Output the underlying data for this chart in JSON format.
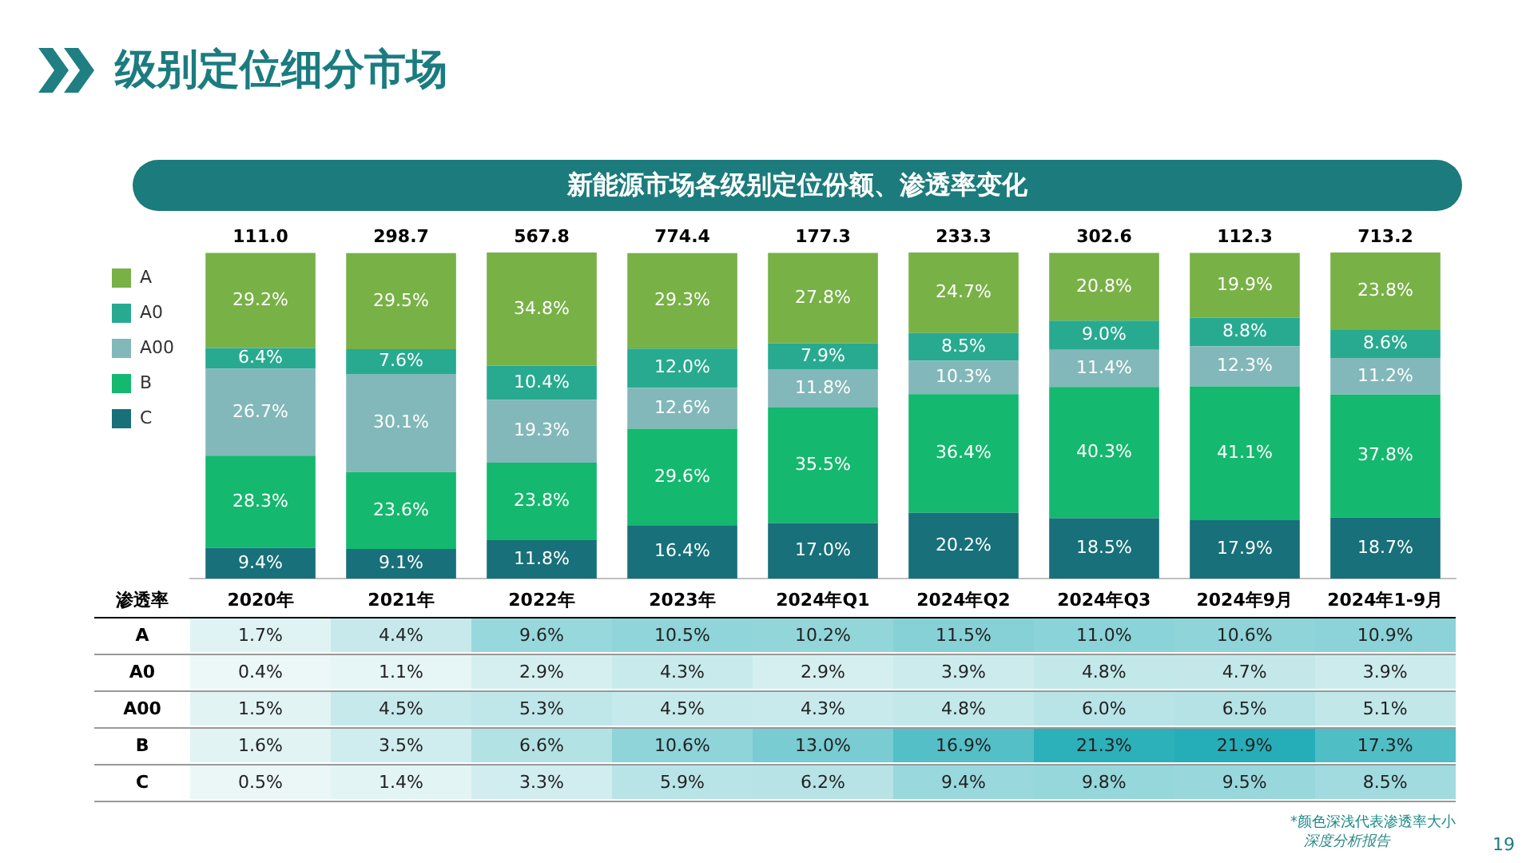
{
  "chart_data": [
    {
      "type": "bar",
      "title": "级别定位细分市场",
      "subtitle": "新能源市场各级别定位份额、渗透率变化",
      "stacked": true,
      "legend": "top left",
      "categories": [
        "2020年",
        "2021年",
        "2022年",
        "2023年",
        "2024年Q1",
        "2024年Q2",
        "2024年Q3",
        "2024年9月",
        "2024年1-9月"
      ],
      "series": [
        {
          "name": "C",
          "color": "#17707a",
          "values": [
            9.4,
            9.1,
            11.8,
            16.4,
            17.0,
            20.2,
            18.5,
            17.9,
            18.7
          ],
          "value_labels": [
            "9.4%",
            "9.1%",
            "11.8%",
            "16.4%",
            "17.0%",
            "20.2%",
            "18.5%",
            "17.9%",
            "18.7%"
          ]
        },
        {
          "name": "B",
          "color": "#14b86f",
          "values": [
            28.3,
            23.6,
            23.8,
            29.6,
            35.5,
            36.4,
            40.3,
            41.1,
            37.8
          ],
          "value_labels": [
            "28.3%",
            "23.6%",
            "23.8%",
            "29.6%",
            "35.5%",
            "36.4%",
            "40.3%",
            "41.1%",
            "37.8%"
          ]
        },
        {
          "name": "A00",
          "color": "#82b8b9",
          "values": [
            26.7,
            30.1,
            19.3,
            12.6,
            11.8,
            10.3,
            11.4,
            12.3,
            11.2
          ],
          "value_labels": [
            "26.7%",
            "30.1%",
            "19.3%",
            "12.6%",
            "11.8%",
            "10.3%",
            "11.4%",
            "12.3%",
            "11.2%"
          ]
        },
        {
          "name": "A0",
          "color": "#27aa90",
          "values": [
            6.4,
            7.6,
            10.4,
            12.0,
            7.9,
            8.5,
            9.0,
            8.8,
            8.6
          ],
          "value_labels": [
            "6.4%",
            "7.6%",
            "10.4%",
            "12.0%",
            "7.9%",
            "8.5%",
            "9.0%",
            "8.8%",
            "8.6%"
          ]
        },
        {
          "name": "A",
          "color": "#78b146",
          "values": [
            29.2,
            29.5,
            34.8,
            29.3,
            27.8,
            24.7,
            20.8,
            19.9,
            23.8
          ],
          "value_labels": [
            "29.2%",
            "29.5%",
            "34.8%",
            "29.3%",
            "27.8%",
            "24.7%",
            "20.8%",
            "19.9%",
            "23.8%"
          ]
        }
      ],
      "tick_labels": false,
      "annotations": [
        "深度分析报告",
        "19",
        {
          "text": "111.0",
          "x": "2020年",
          "y": 100
        },
        {
          "text": "298.7",
          "x": "2021年",
          "y": 100
        },
        {
          "text": "567.8",
          "x": "2022年",
          "y": 100
        },
        {
          "text": "774.4",
          "x": "2023年",
          "y": 100
        },
        {
          "text": "177.3",
          "x": "2024年Q1",
          "y": 100
        },
        {
          "text": "233.3",
          "x": "2024年Q2",
          "y": 100
        },
        {
          "text": "302.6",
          "x": "2024年Q3",
          "y": 100
        },
        {
          "text": "112.3",
          "x": "2024年9月",
          "y": 100
        },
        {
          "text": "713.2",
          "x": "2024年1-9月",
          "y": 100
        }
      ]
    },
    {
      "type": "heatmap",
      "title": "渗透率",
      "categories": [
        "2020年",
        "2021年",
        "2022年",
        "2023年",
        "2024年Q1",
        "2024年Q2",
        "2024年Q3",
        "2024年9月",
        "2024年1-9月"
      ],
      "y_categories": [
        "A",
        "A0",
        "A00",
        "B",
        "C"
      ],
      "cells": [
        [
          1.7,
          4.4,
          9.6,
          10.5,
          10.2,
          11.5,
          11.0,
          10.6,
          10.9
        ],
        [
          0.4,
          1.1,
          2.9,
          4.3,
          2.9,
          3.9,
          4.8,
          4.7,
          3.9
        ],
        [
          1.5,
          4.5,
          5.3,
          4.5,
          4.3,
          4.8,
          6.0,
          6.5,
          5.1
        ],
        [
          1.6,
          3.5,
          6.6,
          10.6,
          13.0,
          16.9,
          21.3,
          21.9,
          17.3
        ],
        [
          0.5,
          1.4,
          3.3,
          5.9,
          6.2,
          9.4,
          9.8,
          9.5,
          8.5
        ]
      ],
      "cell_labels": [
        [
          "1.7%",
          "4.4%",
          "9.6%",
          "10.5%",
          "10.2%",
          "11.5%",
          "11.0%",
          "10.6%",
          "10.9%"
        ],
        [
          "0.4%",
          "1.1%",
          "2.9%",
          "4.3%",
          "2.9%",
          "3.9%",
          "4.8%",
          "4.7%",
          "3.9%"
        ],
        [
          "1.5%",
          "4.5%",
          "5.3%",
          "4.5%",
          "4.3%",
          "4.8%",
          "6.0%",
          "6.5%",
          "5.1%"
        ],
        [
          "1.6%",
          "3.5%",
          "6.6%",
          "10.6%",
          "13.0%",
          "16.9%",
          "21.3%",
          "21.9%",
          "17.3%"
        ],
        [
          "0.5%",
          "1.4%",
          "3.3%",
          "5.9%",
          "6.2%",
          "9.4%",
          "9.8%",
          "9.5%",
          "8.5%"
        ]
      ],
      "annotations": [
        "*颜色深浅代表渗透率大小"
      ]
    }
  ]
}
